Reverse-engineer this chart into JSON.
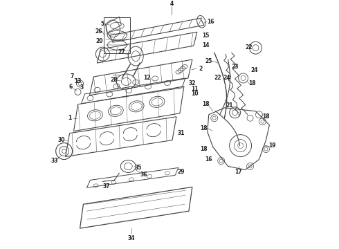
{
  "background_color": "#ffffff",
  "line_color": "#444444",
  "text_color": "#222222",
  "fig_width": 4.9,
  "fig_height": 3.6,
  "dpi": 100
}
